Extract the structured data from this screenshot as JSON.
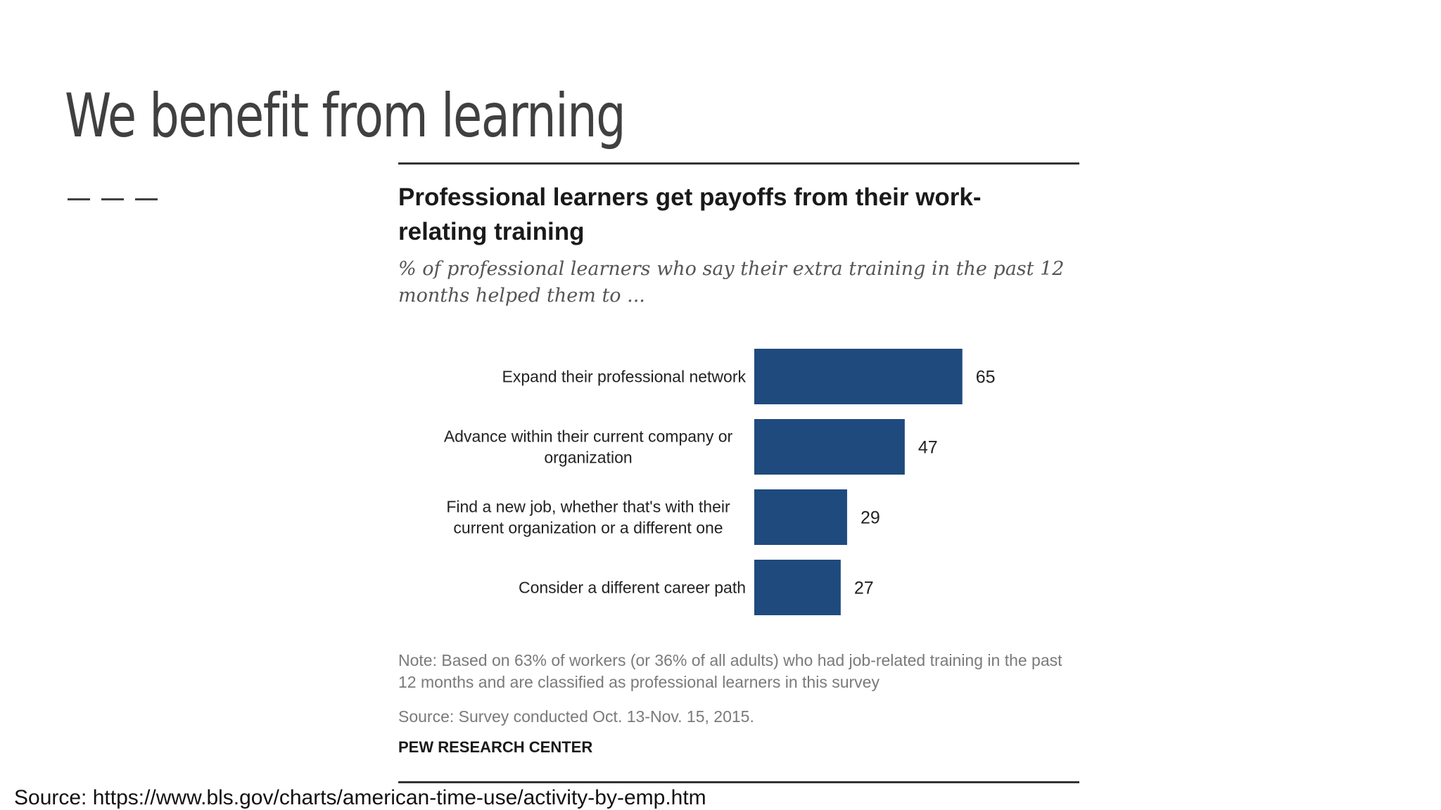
{
  "slide": {
    "title": "We benefit from learning",
    "source": "Source: https://www.bls.gov/charts/american-time-use/activity-by-emp.htm"
  },
  "chart_data": {
    "type": "bar",
    "orientation": "horizontal",
    "title": "Professional  learners get payoffs from their work-relating training",
    "subtitle": "% of professional learners who say their extra training in the past 12 months helped them to ...",
    "categories": [
      [
        "Expand their professional network"
      ],
      [
        "Advance within their current company or",
        "organization"
      ],
      [
        "Find a new job, whether that's with their",
        "current organization or a different one"
      ],
      [
        "Consider a different career path"
      ]
    ],
    "values": [
      65,
      47,
      29,
      27
    ],
    "bar_color": "#1f4a7e",
    "grid": false,
    "note": "Note: Based on 63% of workers (or 36% of all adults) who had job-related training in the past 12 months and are classified as professional learners in this survey",
    "source": "Source: Survey conducted Oct. 13-Nov. 15, 2015.",
    "credit": "PEW RESEARCH CENTER"
  }
}
